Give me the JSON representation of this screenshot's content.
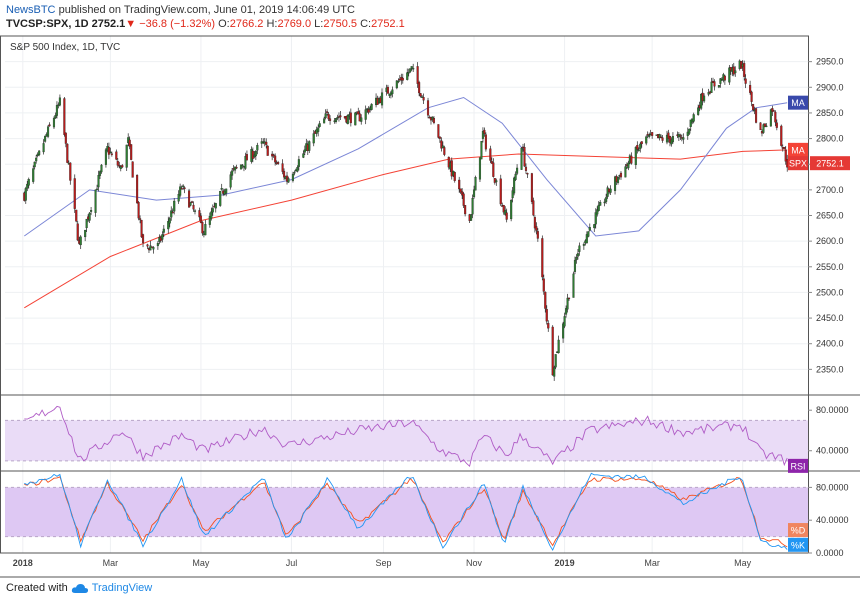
{
  "header": {
    "publisher": "NewsBTC",
    "published_text": "published on TradingView.com, June 01, 2019 14:06:49 UTC",
    "symbol": "TVCSP:SPX, 1D",
    "last": "2752.1",
    "change_arrow": "▼",
    "change": "−36.8 (−1.32%)",
    "open_label": "O:",
    "open": "2766.2",
    "high_label": "H:",
    "high": "2769.0",
    "low_label": "L:",
    "low": "2750.5",
    "close_label": "C:",
    "close": "2752.1"
  },
  "footer": {
    "created_with": "Created with",
    "brand": "TradingView"
  },
  "colors": {
    "up": "#2e7d32",
    "down": "#b71c1c",
    "ma_slow": "#f44336",
    "ma_fast": "#7b86d6",
    "rsi_line": "#b05cc6",
    "rsi_band": "#eadcf7",
    "stoch_band": "#dec8f3",
    "stoch_k": "#2196f3",
    "stoch_d": "#f4511e",
    "ma_tag": "#3949ab",
    "rsi_tag": "#8e24aa"
  },
  "chart_data": [
    {
      "type": "line",
      "title": "S&P 500 Index, 1D, TVC",
      "series": [
        {
          "name": "SPX",
          "x": [
            "2018-01-02",
            "2018-01-16",
            "2018-01-26",
            "2018-02-08",
            "2018-02-27",
            "2018-03-08",
            "2018-03-13",
            "2018-03-23",
            "2018-04-02",
            "2018-04-18",
            "2018-05-03",
            "2018-05-21",
            "2018-06-12",
            "2018-06-28",
            "2018-07-25",
            "2018-08-15",
            "2018-09-20",
            "2018-10-10",
            "2018-10-29",
            "2018-11-07",
            "2018-11-23",
            "2018-12-03",
            "2018-12-14",
            "2018-12-24",
            "2019-01-10",
            "2019-02-01",
            "2019-02-25",
            "2019-03-22",
            "2019-04-05",
            "2019-04-30",
            "2019-05-13",
            "2019-05-21",
            "2019-05-31"
          ],
          "values": [
            2690,
            2800,
            2870,
            2590,
            2780,
            2740,
            2795,
            2590,
            2590,
            2705,
            2620,
            2730,
            2790,
            2720,
            2845,
            2840,
            2935,
            2790,
            2640,
            2810,
            2640,
            2790,
            2600,
            2350,
            2580,
            2705,
            2800,
            2800,
            2890,
            2945,
            2810,
            2860,
            2752
          ]
        },
        {
          "name": "MA",
          "x": [
            "2018-01-02",
            "2018-02-15",
            "2018-04-01",
            "2018-05-15",
            "2018-07-01",
            "2018-08-15",
            "2018-10-01",
            "2018-10-25",
            "2018-11-20",
            "2018-12-20",
            "2019-01-22",
            "2019-02-20",
            "2019-03-20",
            "2019-04-20",
            "2019-05-10",
            "2019-05-31"
          ],
          "values": [
            2610,
            2700,
            2680,
            2690,
            2720,
            2780,
            2860,
            2880,
            2830,
            2720,
            2610,
            2620,
            2700,
            2820,
            2860,
            2870
          ]
        },
        {
          "name": "MA",
          "x": [
            "2018-01-02",
            "2018-03-01",
            "2018-05-01",
            "2018-07-01",
            "2018-09-01",
            "2018-10-15",
            "2018-12-01",
            "2019-01-22",
            "2019-03-20",
            "2019-05-01",
            "2019-05-31"
          ],
          "values": [
            2470,
            2570,
            2640,
            2680,
            2730,
            2760,
            2770,
            2765,
            2760,
            2775,
            2778
          ]
        }
      ],
      "ylim": [
        2300,
        3000
      ],
      "yticks": [
        "2950.0",
        "2900.0",
        "2850.0",
        "2800.0",
        "2750.0",
        "2700.0",
        "2650.0",
        "2600.0",
        "2550.0",
        "2500.0",
        "2450.0",
        "2400.0",
        "2350.0"
      ],
      "axis_labels": {
        "ma_slow": "MA",
        "ma_fast": "MA",
        "price_name": "SPX",
        "price_last": "2752.1"
      }
    },
    {
      "type": "line",
      "series": [
        {
          "name": "RSI",
          "x": [
            "2018-01-02",
            "2018-01-26",
            "2018-02-08",
            "2018-03-09",
            "2018-03-23",
            "2018-04-18",
            "2018-05-03",
            "2018-06-12",
            "2018-06-28",
            "2018-08-15",
            "2018-09-20",
            "2018-10-10",
            "2018-10-29",
            "2018-11-07",
            "2018-11-23",
            "2018-12-03",
            "2018-12-24",
            "2019-01-18",
            "2019-02-25",
            "2019-03-22",
            "2019-04-30",
            "2019-05-13",
            "2019-05-31"
          ],
          "values": [
            68,
            85,
            30,
            60,
            35,
            55,
            40,
            62,
            45,
            60,
            68,
            40,
            28,
            55,
            35,
            55,
            28,
            60,
            70,
            58,
            66,
            38,
            30
          ]
        }
      ],
      "ylim": [
        20,
        95
      ],
      "yticks": [
        "80.0000",
        "40.0000"
      ],
      "band": [
        30,
        70
      ],
      "axis_labels": {
        "tag": "RSI"
      }
    },
    {
      "type": "line",
      "series": [
        {
          "name": "%K",
          "x": [
            "2018-01-02",
            "2018-01-26",
            "2018-02-09",
            "2018-02-27",
            "2018-03-23",
            "2018-04-18",
            "2018-05-03",
            "2018-06-12",
            "2018-06-28",
            "2018-07-25",
            "2018-08-15",
            "2018-09-20",
            "2018-10-11",
            "2018-11-08",
            "2018-11-21",
            "2018-12-04",
            "2018-12-24",
            "2019-01-18",
            "2019-02-25",
            "2019-03-22",
            "2019-04-30",
            "2019-05-13",
            "2019-05-31"
          ],
          "values": [
            85,
            95,
            10,
            90,
            10,
            90,
            20,
            92,
            15,
            90,
            30,
            95,
            8,
            85,
            10,
            80,
            5,
            95,
            92,
            60,
            95,
            15,
            5
          ]
        },
        {
          "name": "%D",
          "x": [
            "2018-01-02",
            "2018-01-26",
            "2018-02-09",
            "2018-02-27",
            "2018-03-23",
            "2018-04-18",
            "2018-05-03",
            "2018-06-12",
            "2018-06-28",
            "2018-07-25",
            "2018-08-15",
            "2018-09-20",
            "2018-10-11",
            "2018-11-08",
            "2018-11-21",
            "2018-12-04",
            "2018-12-24",
            "2019-01-18",
            "2019-02-25",
            "2019-03-22",
            "2019-04-30",
            "2019-05-13",
            "2019-05-31"
          ],
          "values": [
            82,
            92,
            15,
            85,
            15,
            85,
            25,
            88,
            20,
            85,
            35,
            92,
            12,
            80,
            15,
            75,
            10,
            90,
            90,
            65,
            92,
            20,
            10
          ]
        }
      ],
      "ylim": [
        0,
        100
      ],
      "yticks": [
        "80.0000",
        "40.0000",
        "0.0000"
      ],
      "band": [
        20,
        80
      ],
      "axis_labels": {
        "d_tag": "%D",
        "k_tag": "%K"
      }
    }
  ],
  "x_axis": {
    "labels": [
      "2018",
      "Mar",
      "May",
      "Jul",
      "Sep",
      "Nov",
      "2019",
      "Mar",
      "May"
    ],
    "dates": [
      "2018-01-01",
      "2018-03-01",
      "2018-05-01",
      "2018-07-01",
      "2018-09-01",
      "2018-11-01",
      "2019-01-01",
      "2019-03-01",
      "2019-05-01"
    ]
  }
}
